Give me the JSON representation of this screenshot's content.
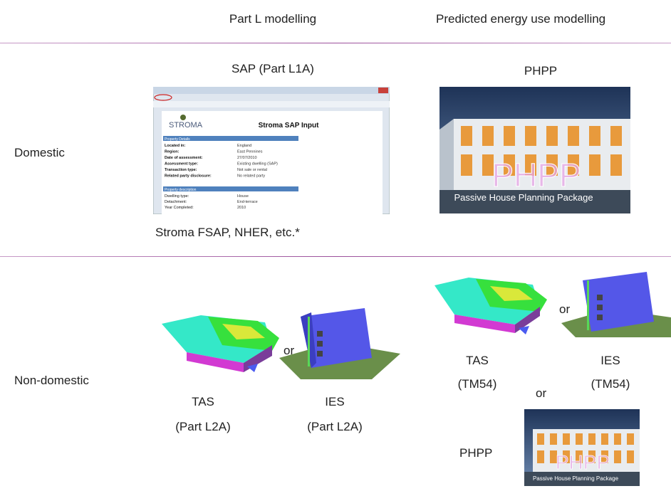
{
  "header": {
    "columns": [
      "Part L modelling",
      "Predicted energy use modelling"
    ]
  },
  "rows": [
    {
      "label": "Domestic",
      "part_l": {
        "title": "SAP (Part L1A)",
        "caption": "Stroma FSAP, NHER, etc.*",
        "screenshot": {
          "logo": "STROMA",
          "title": "Stroma SAP Input",
          "sections": [
            "Property Details",
            "Property description"
          ],
          "fields": [
            [
              "Located in:",
              "England"
            ],
            [
              "Region:",
              "East Pennines"
            ],
            [
              "Date of assessment:",
              "27/07/2010"
            ],
            [
              "Assessment type:",
              "Existing dwelling (SAP)"
            ],
            [
              "Transaction type:",
              "Not sale or rental"
            ],
            [
              "Related party disclosure:",
              "No related party"
            ],
            [
              "Dwelling type:",
              "House"
            ],
            [
              "Detachment:",
              "End-terrace"
            ],
            [
              "Year Completed:",
              "2010"
            ]
          ]
        }
      },
      "predicted": {
        "title": "PHPP",
        "image_logo": "PHPP",
        "image_caption": "Passive House Planning Package"
      }
    },
    {
      "label": "Non-domestic",
      "part_l": {
        "or": "or",
        "options": [
          {
            "name": "TAS",
            "note": "(Part L2A)"
          },
          {
            "name": "IES",
            "note": "(Part L2A)"
          }
        ]
      },
      "predicted": {
        "or": "or",
        "or_phpp": "or",
        "options": [
          {
            "name": "TAS",
            "note": "(TM54)"
          },
          {
            "name": "IES",
            "note": "(TM54)"
          }
        ],
        "phpp": "PHPP",
        "image_logo": "PHPP",
        "image_caption": "Passive House Planning Package"
      }
    }
  ]
}
